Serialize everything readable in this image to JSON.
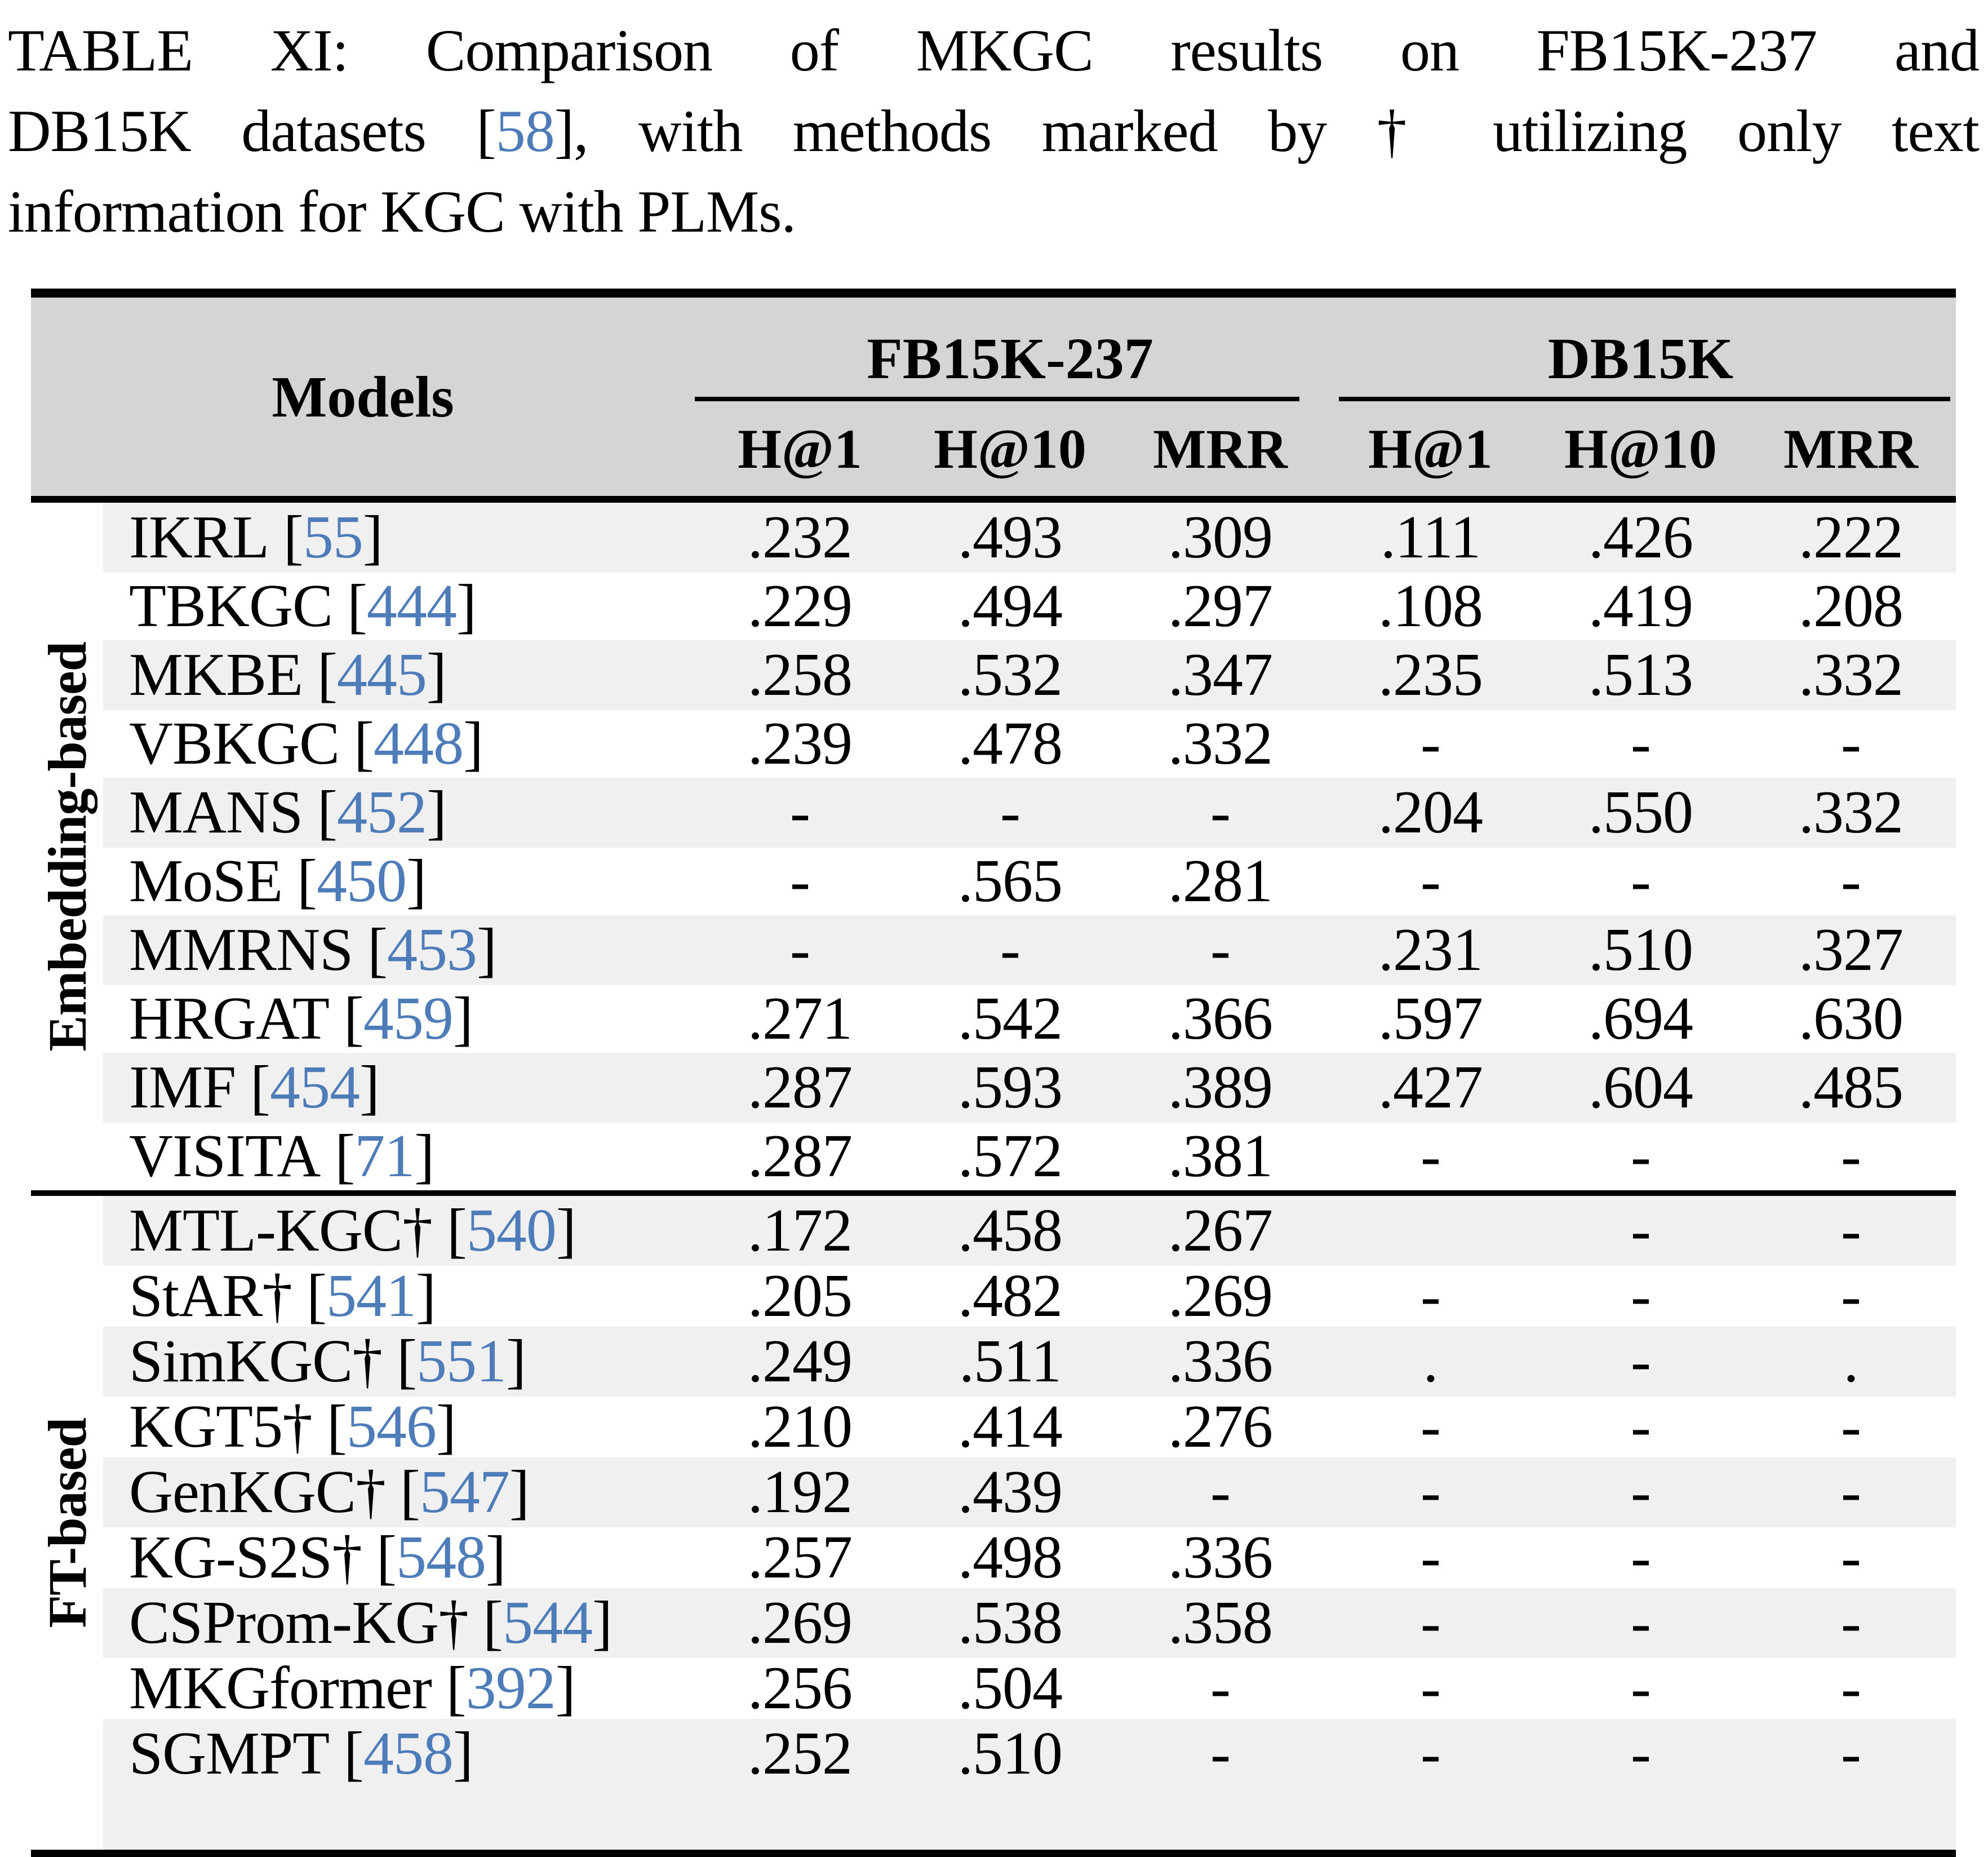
{
  "caption": {
    "line1": "TABLE XI: Comparison of MKGC results on FB15K-237 and",
    "line2_pre": "DB15K datasets [",
    "line2_cite": "58",
    "line2_post": "], with methods marked by † utilizing only text",
    "line3": "information for KGC with PLMs."
  },
  "table": {
    "models_header": "Models",
    "bracket_open": "[",
    "bracket_close": "]",
    "groups": [
      {
        "label": "FB15K-237"
      },
      {
        "label": "DB15K"
      }
    ],
    "metrics": [
      "H@1",
      "H@10",
      "MRR",
      "H@1",
      "H@10",
      "MRR"
    ],
    "sections": [
      {
        "label": "Embedding-based",
        "rows": [
          {
            "model": "IKRL",
            "cite": "55",
            "values": [
              ".232",
              ".493",
              ".309",
              ".111",
              ".426",
              ".222"
            ]
          },
          {
            "model": "TBKGC",
            "cite": "444",
            "values": [
              ".229",
              ".494",
              ".297",
              ".108",
              ".419",
              ".208"
            ]
          },
          {
            "model": "MKBE",
            "cite": "445",
            "values": [
              ".258",
              ".532",
              ".347",
              ".235",
              ".513",
              ".332"
            ]
          },
          {
            "model": "VBKGC",
            "cite": "448",
            "values": [
              ".239",
              ".478",
              ".332",
              "-",
              "-",
              "-"
            ]
          },
          {
            "model": "MANS",
            "cite": "452",
            "values": [
              "-",
              "-",
              "-",
              ".204",
              ".550",
              ".332"
            ]
          },
          {
            "model": "MoSE",
            "cite": "450",
            "values": [
              "-",
              ".565",
              ".281",
              "-",
              "-",
              "-"
            ]
          },
          {
            "model": "MMRNS",
            "cite": "453",
            "values": [
              "-",
              "-",
              "-",
              ".231",
              ".510",
              ".327"
            ]
          },
          {
            "model": "HRGAT",
            "cite": "459",
            "values": [
              ".271",
              ".542",
              ".366",
              ".597",
              ".694",
              ".630"
            ]
          },
          {
            "model": "IMF",
            "cite": "454",
            "values": [
              ".287",
              ".593",
              ".389",
              ".427",
              ".604",
              ".485"
            ]
          },
          {
            "model": "VISITA",
            "cite": "71",
            "values": [
              ".287",
              ".572",
              ".381",
              "-",
              "-",
              "-"
            ]
          }
        ]
      },
      {
        "label": "FT-based",
        "rows": [
          {
            "model": "MTL-KGC†",
            "cite": "540",
            "values": [
              ".172",
              ".458",
              ".267",
              "",
              "-",
              "-"
            ]
          },
          {
            "model": "StAR†",
            "cite": "541",
            "values": [
              ".205",
              ".482",
              ".269",
              "-",
              "-",
              "-"
            ]
          },
          {
            "model": "SimKGC†",
            "cite": "551",
            "values": [
              ".249",
              ".511",
              ".336",
              ".",
              "-",
              "."
            ]
          },
          {
            "model": "KGT5†",
            "cite": "546",
            "values": [
              ".210",
              ".414",
              ".276",
              "-",
              "-",
              "-"
            ]
          },
          {
            "model": "GenKGC†",
            "cite": "547",
            "values": [
              ".192",
              ".439",
              "-",
              "-",
              "-",
              "-"
            ]
          },
          {
            "model": "KG-S2S†",
            "cite": "548",
            "values": [
              ".257",
              ".498",
              ".336",
              "-",
              "-",
              "-"
            ]
          },
          {
            "model": "CSProm-KG†",
            "cite": "544",
            "values": [
              ".269",
              ".538",
              ".358",
              "-",
              "-",
              "-"
            ]
          },
          {
            "model": "MKGformer",
            "cite": "392",
            "values": [
              ".256",
              ".504",
              "-",
              "-",
              "-",
              "-"
            ]
          },
          {
            "model": "SGMPT",
            "cite": "458",
            "values": [
              ".252",
              ".510",
              "-",
              "-",
              "-",
              "-"
            ]
          }
        ]
      }
    ]
  },
  "colors": {
    "citation_blue": "#4d7cb8",
    "header_gray": "#d5d5d5",
    "row_stripe": "#f0f0f0",
    "rule_black": "#000000"
  }
}
